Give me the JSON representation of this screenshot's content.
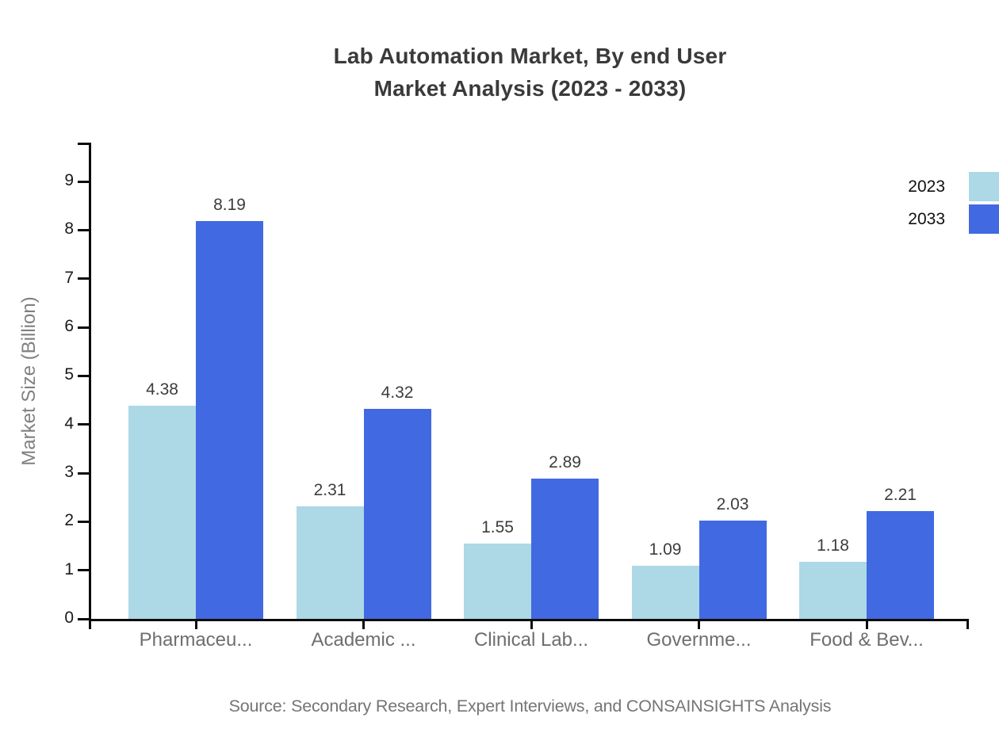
{
  "title": {
    "line1": "Lab Automation Market, By end User",
    "line2": "Market Analysis (2023 - 2033)"
  },
  "source": "Source: Secondary Research, Expert Interviews, and CONSAINSIGHTS Analysis",
  "chart_data": {
    "type": "bar",
    "title": "Lab Automation Market, By end User Market Analysis (2023 - 2033)",
    "categories": [
      "Pharmaceu...",
      "Academic ...",
      "Clinical Lab...",
      "Governme...",
      "Food & Bev..."
    ],
    "series": [
      {
        "name": "2023",
        "color": "#ADD8E6",
        "values": [
          4.38,
          2.31,
          1.55,
          1.09,
          1.18
        ]
      },
      {
        "name": "2033",
        "color": "#4169E1",
        "values": [
          8.19,
          4.32,
          2.89,
          2.03,
          2.21
        ]
      }
    ],
    "xlabel": "",
    "ylabel": "Market Size (Billion)",
    "ylim": [
      0,
      9.8
    ],
    "yticks": [
      0,
      1,
      2,
      3,
      4,
      5,
      6,
      7,
      8,
      9
    ],
    "grid": false,
    "legend_position": "top-right",
    "value_labels": true
  }
}
